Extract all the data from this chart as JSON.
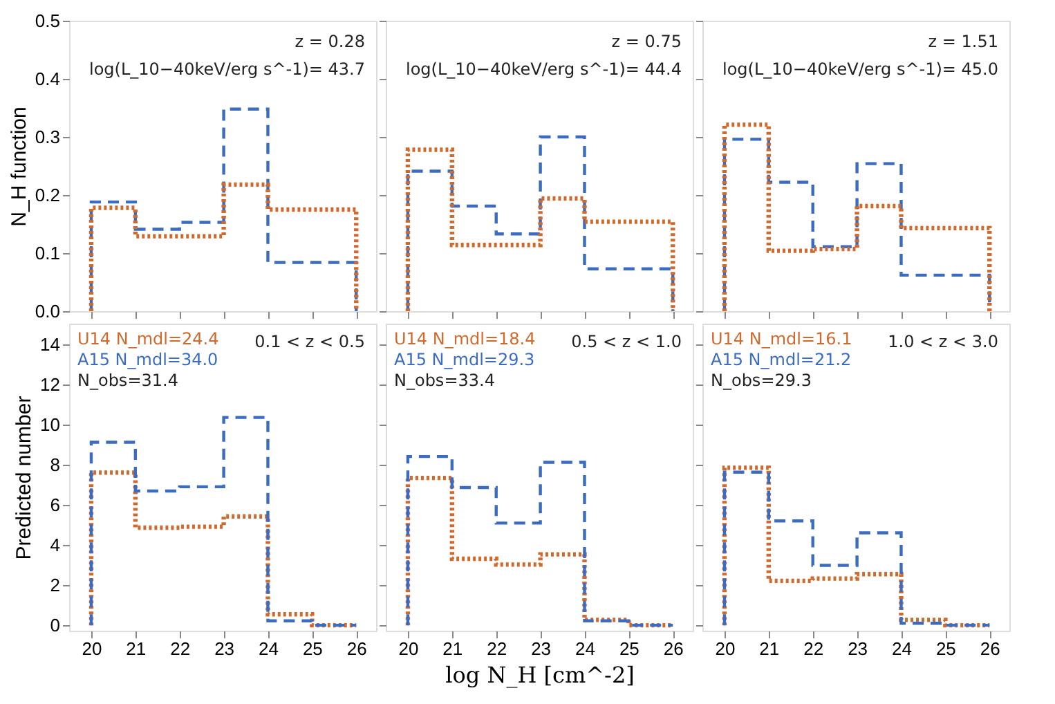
{
  "chart_data": [
    {
      "type": "histogram",
      "ylabel": "N_H function",
      "bins": [
        20,
        21,
        22,
        23,
        24,
        26
      ],
      "xlim": [
        19.5,
        26.45
      ],
      "xticks": [
        20,
        21,
        22,
        23,
        24,
        25,
        26
      ],
      "ylim": [
        0,
        0.5
      ],
      "yticks": [
        {
          "value": 0,
          "label": "0.0"
        },
        0.1,
        0.2,
        0.3,
        0.4,
        0.5
      ],
      "tick_labels": "y",
      "grid": false,
      "series": [
        {
          "color": "#3b6cc2",
          "line_style": "dashed",
          "values": [
            0.188,
            0.141,
            0.153,
            0.348,
            0.084
          ]
        },
        {
          "color": "#cf6a2c",
          "line_style": "dotted",
          "values": [
            0.178,
            0.129,
            0.129,
            0.218,
            0.175
          ]
        }
      ],
      "annotations": [
        "z =  0.28",
        "log(L_10−40keV/erg s^-1)= 43.7"
      ]
    },
    {
      "type": "histogram",
      "bins": [
        20,
        21,
        22,
        23,
        24,
        26
      ],
      "xlim": [
        19.5,
        26.45
      ],
      "xticks": [
        20,
        21,
        22,
        23,
        24,
        25,
        26
      ],
      "ylim": [
        0,
        0.5
      ],
      "yticks": [
        0.0,
        0.1,
        0.2,
        0.3,
        0.4,
        0.5
      ],
      "tick_labels": false,
      "grid": false,
      "series": [
        {
          "color": "#3b6cc2",
          "line_style": "dashed",
          "values": [
            0.241,
            0.181,
            0.133,
            0.3,
            0.073
          ]
        },
        {
          "color": "#cf6a2c",
          "line_style": "dotted",
          "values": [
            0.278,
            0.114,
            0.114,
            0.194,
            0.154
          ]
        }
      ],
      "annotations": [
        "z =  0.75",
        "log(L_10−40keV/erg s^-1)= 44.4"
      ]
    },
    {
      "type": "histogram",
      "bins": [
        20,
        21,
        22,
        23,
        24,
        26
      ],
      "xlim": [
        19.5,
        26.45
      ],
      "xticks": [
        20,
        21,
        22,
        23,
        24,
        25,
        26
      ],
      "ylim": [
        0,
        0.5
      ],
      "yticks": [
        0.0,
        0.1,
        0.2,
        0.3,
        0.4,
        0.5
      ],
      "tick_labels": false,
      "grid": false,
      "series": [
        {
          "color": "#3b6cc2",
          "line_style": "dashed",
          "values": [
            0.296,
            0.222,
            0.111,
            0.254,
            0.062
          ]
        },
        {
          "color": "#cf6a2c",
          "line_style": "dotted",
          "values": [
            0.321,
            0.104,
            0.107,
            0.181,
            0.143
          ]
        }
      ],
      "annotations": [
        "z =  1.51",
        "log(L_10−40keV/erg s^-1)= 45.0"
      ]
    },
    {
      "type": "histogram",
      "ylabel": "Predicted number",
      "bins": [
        20,
        21,
        22,
        23,
        24,
        25,
        26
      ],
      "xlim": [
        19.5,
        26.45
      ],
      "xticks": [
        20,
        21,
        22,
        23,
        24,
        25,
        26
      ],
      "ylim": [
        -0.27,
        15.05
      ],
      "yticks": [
        0,
        2,
        4,
        6,
        8,
        10,
        12,
        14
      ],
      "grid": false,
      "series": [
        {
          "color": "#cf6a2c",
          "line_style": "dotted",
          "values": [
            7.62,
            4.87,
            4.92,
            5.43,
            0.55,
            0
          ]
        },
        {
          "color": "#3b6cc2",
          "line_style": "dashed",
          "values": [
            9.13,
            6.7,
            6.91,
            10.37,
            0.22,
            0
          ]
        }
      ],
      "annotations": [
        "U14 N_mdl=24.4",
        "A15 N_mdl=34.0",
        "N_obs=31.4",
        "0.1 < z <  0.5"
      ]
    },
    {
      "type": "histogram",
      "xlabel": "log N_H [cm^-2]",
      "bins": [
        20,
        21,
        22,
        23,
        24,
        25,
        26
      ],
      "xlim": [
        19.5,
        26.45
      ],
      "xticks": [
        20,
        21,
        22,
        23,
        24,
        25,
        26
      ],
      "ylim": [
        -0.27,
        15.05
      ],
      "yticks": [
        0,
        2,
        4,
        6,
        8,
        10,
        12,
        14
      ],
      "tick_labels": "x",
      "grid": false,
      "series": [
        {
          "color": "#cf6a2c",
          "line_style": "dotted",
          "values": [
            7.35,
            3.32,
            3.03,
            3.54,
            0.27,
            0
          ]
        },
        {
          "color": "#3b6cc2",
          "line_style": "dashed",
          "values": [
            8.42,
            6.87,
            5.1,
            8.13,
            0.22,
            0
          ]
        }
      ],
      "annotations": [
        "U14 N_mdl=18.4",
        "A15 N_mdl=29.3",
        "N_obs=33.4",
        "0.5 < z <  1.0"
      ]
    },
    {
      "type": "histogram",
      "bins": [
        20,
        21,
        22,
        23,
        24,
        25,
        26
      ],
      "xlim": [
        19.5,
        26.45
      ],
      "xticks": [
        20,
        21,
        22,
        23,
        24,
        25,
        26
      ],
      "ylim": [
        -0.27,
        15.05
      ],
      "yticks": [
        0,
        2,
        4,
        6,
        8,
        10,
        12,
        14
      ],
      "tick_labels": "x",
      "grid": false,
      "series": [
        {
          "color": "#cf6a2c",
          "line_style": "dotted",
          "values": [
            7.86,
            2.22,
            2.33,
            2.55,
            0.27,
            0
          ]
        },
        {
          "color": "#3b6cc2",
          "line_style": "dashed",
          "values": [
            7.64,
            5.21,
            2.99,
            4.61,
            0.1,
            0
          ]
        }
      ],
      "annotations": [
        "U14 N_mdl=16.1",
        "A15 N_mdl=21.2",
        "N_obs=29.3",
        "1.0 < z <  3.0"
      ]
    }
  ]
}
